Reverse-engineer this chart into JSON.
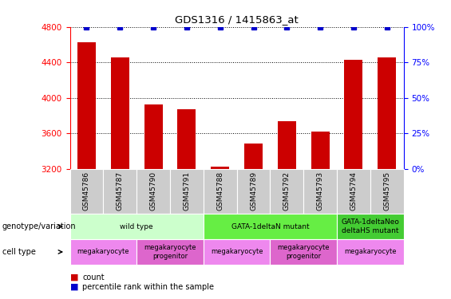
{
  "title": "GDS1316 / 1415863_at",
  "samples": [
    "GSM45786",
    "GSM45787",
    "GSM45790",
    "GSM45791",
    "GSM45788",
    "GSM45789",
    "GSM45792",
    "GSM45793",
    "GSM45794",
    "GSM45795"
  ],
  "bar_values": [
    4630,
    4460,
    3930,
    3870,
    3230,
    3490,
    3740,
    3620,
    4430,
    4460
  ],
  "percentile_values": [
    100,
    100,
    100,
    100,
    100,
    100,
    100,
    100,
    100,
    100
  ],
  "ylim_left": [
    3200,
    4800
  ],
  "ylim_right": [
    0,
    100
  ],
  "bar_color": "#cc0000",
  "percentile_color": "#0000cc",
  "genotype_groups": [
    {
      "label": "wild type",
      "start": 0,
      "end": 4,
      "color": "#ccffcc"
    },
    {
      "label": "GATA-1deltaN mutant",
      "start": 4,
      "end": 8,
      "color": "#66ee44"
    },
    {
      "label": "GATA-1deltaNeo\ndeltaHS mutant",
      "start": 8,
      "end": 10,
      "color": "#44cc33"
    }
  ],
  "cell_type_groups": [
    {
      "label": "megakaryocyte",
      "start": 0,
      "end": 2,
      "color": "#ee88ee"
    },
    {
      "label": "megakaryocyte\nprogenitor",
      "start": 2,
      "end": 4,
      "color": "#dd66cc"
    },
    {
      "label": "megakaryocyte",
      "start": 4,
      "end": 6,
      "color": "#ee88ee"
    },
    {
      "label": "megakaryocyte\nprogenitor",
      "start": 6,
      "end": 8,
      "color": "#dd66cc"
    },
    {
      "label": "megakaryocyte",
      "start": 8,
      "end": 10,
      "color": "#ee88ee"
    }
  ],
  "legend_count_color": "#cc0000",
  "legend_percentile_color": "#0000cc",
  "yticks_left": [
    3200,
    3600,
    4000,
    4400,
    4800
  ],
  "yticks_right": [
    0,
    25,
    50,
    75,
    100
  ],
  "sample_bg_color": "#cccccc",
  "bar_width": 0.55
}
